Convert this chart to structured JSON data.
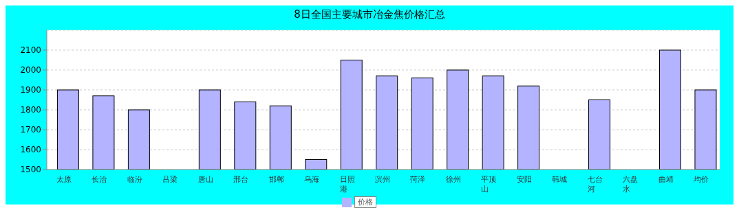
{
  "chart_data": {
    "type": "bar",
    "title": "8日全国主要城市冶金焦价格汇总",
    "categories": [
      "太原",
      "长治",
      "临汾",
      "吕梁",
      "唐山",
      "邢台",
      "邯郸",
      "乌海",
      "日照港",
      "滨州",
      "菏泽",
      "徐州",
      "平顶山",
      "安阳",
      "韩城",
      "七台河",
      "六盘水",
      "曲靖",
      "均价"
    ],
    "series": [
      {
        "name": "价格",
        "color": "#b3b3ff",
        "values": [
          1900,
          1870,
          1800,
          null,
          1900,
          1840,
          1820,
          1550,
          2050,
          1970,
          1960,
          2000,
          1970,
          1920,
          null,
          1850,
          null,
          2100,
          1900
        ]
      }
    ],
    "ylim": [
      1500,
      2200
    ],
    "yticks": [
      1500,
      1600,
      1700,
      1800,
      1900,
      2000,
      2100
    ],
    "grid": "y",
    "legend": "bottom"
  }
}
